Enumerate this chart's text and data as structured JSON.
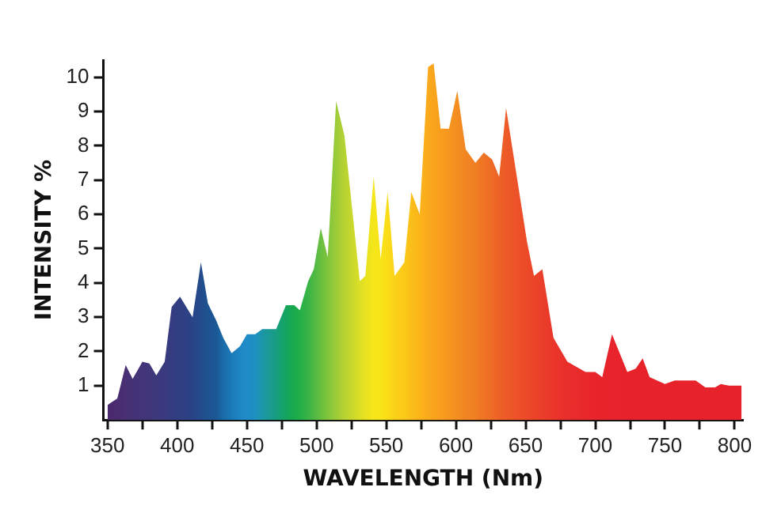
{
  "chart_data": {
    "type": "area",
    "xlabel": "WAVELENGTH (Nm)",
    "ylabel": "INTENSITY %",
    "x": [
      350,
      357,
      363,
      368,
      375,
      380,
      385,
      391,
      396,
      402,
      411,
      417,
      422,
      428,
      433,
      439,
      445,
      450,
      456,
      461,
      471,
      478,
      484,
      488,
      494,
      498,
      503,
      508,
      514,
      520,
      531,
      535,
      541,
      546,
      551,
      556,
      563,
      568,
      574,
      580,
      584,
      589,
      595,
      601,
      607,
      614,
      620,
      626,
      631,
      636,
      651,
      656,
      662,
      670,
      680,
      693,
      700,
      705,
      712,
      723,
      729,
      734,
      739,
      750,
      757,
      772,
      779,
      786,
      790,
      796,
      805
    ],
    "values": [
      0.44,
      0.63,
      1.6,
      1.2,
      1.7,
      1.65,
      1.3,
      1.7,
      3.3,
      3.6,
      3.0,
      4.6,
      3.4,
      2.9,
      2.4,
      1.95,
      2.15,
      2.5,
      2.5,
      2.65,
      2.65,
      3.35,
      3.35,
      3.2,
      4.05,
      4.4,
      5.6,
      4.75,
      9.3,
      8.3,
      4.05,
      4.2,
      7.1,
      4.7,
      6.65,
      4.2,
      4.6,
      6.65,
      6.0,
      10.3,
      10.4,
      8.5,
      8.5,
      9.6,
      7.9,
      7.5,
      7.8,
      7.6,
      7.1,
      9.1,
      5.2,
      4.2,
      4.4,
      2.4,
      1.7,
      1.4,
      1.4,
      1.25,
      2.5,
      1.4,
      1.5,
      1.8,
      1.25,
      1.05,
      1.15,
      1.15,
      0.95,
      0.95,
      1.05,
      1.0,
      1.0
    ],
    "colors": [
      "#4b2a6c",
      "#4b2c70",
      "#483074",
      "#463276",
      "#433478",
      "#40367a",
      "#3d387c",
      "#393a7e",
      "#353c80",
      "#303e82",
      "#2a4486",
      "#234c8c",
      "#1e5290",
      "#1a5894",
      "#1a6aa8",
      "#1c7ab8",
      "#1e86c4",
      "#1f8cc8",
      "#1f90c0",
      "#1c96a8",
      "#179e80",
      "#15a45e",
      "#18aa4c",
      "#22ae48",
      "#3ab446",
      "#4db844",
      "#68be40",
      "#80c43c",
      "#9ccb38",
      "#b6d232",
      "#dcde26",
      "#e8e220",
      "#f4e61a",
      "#f8e418",
      "#fadc18",
      "#fbd218",
      "#fbc818",
      "#fbbe1a",
      "#fbb41a",
      "#faaa1c",
      "#f9a41d",
      "#f89e1e",
      "#f6961f",
      "#f48e20",
      "#f28622",
      "#f07e23",
      "#ef7424",
      "#ee6a25",
      "#ee6226",
      "#ed5a27",
      "#ec4a28",
      "#eb4429",
      "#ea3e2a",
      "#ea362a",
      "#e92e2b",
      "#e8282b",
      "#e8252b",
      "#e8242b",
      "#e8232b",
      "#e8222b",
      "#e8222b",
      "#e8222b",
      "#e8222b",
      "#e8222b",
      "#e8222b",
      "#e8222b",
      "#e8222b",
      "#e8222b",
      "#e8222b",
      "#e8222b",
      "#e8222b"
    ],
    "xlim": [
      347,
      806
    ],
    "ylim": [
      0,
      10.5
    ],
    "xticks": [
      350,
      {
        "value": 375,
        "label": null
      },
      400,
      {
        "value": 425,
        "label": null
      },
      450,
      {
        "value": 475,
        "label": null
      },
      500,
      {
        "value": 525,
        "label": null
      },
      550,
      {
        "value": 575,
        "label": null
      },
      600,
      {
        "value": 625,
        "label": null
      },
      650,
      {
        "value": 675,
        "label": null
      },
      700,
      {
        "value": 725,
        "label": null
      },
      750,
      {
        "value": 775,
        "label": null
      },
      800
    ],
    "yticks": [
      1,
      2,
      3,
      4,
      5,
      6,
      7,
      8,
      9,
      10
    ],
    "grid": false,
    "legend": false,
    "marker": "none"
  }
}
